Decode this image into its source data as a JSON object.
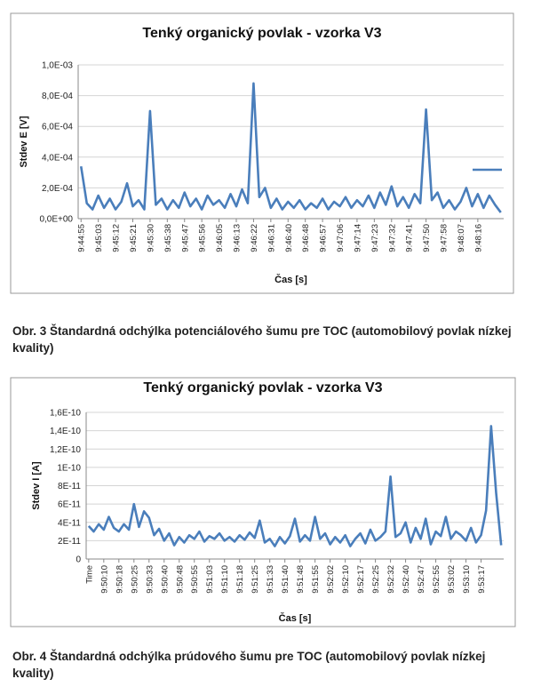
{
  "chart_data": [
    {
      "type": "line",
      "title": "Tenký organický povlak - vzorka V3",
      "x_label": "Čas [s]",
      "y_label": "Stdev E [V]",
      "categories": [
        "9:44:55",
        null,
        null,
        "9:45:03",
        null,
        null,
        "9:45:12",
        null,
        null,
        "9:45:21",
        null,
        null,
        "9:45:30",
        null,
        null,
        "9:45:38",
        null,
        null,
        "9:45:47",
        null,
        null,
        "9:45:56",
        null,
        null,
        "9:46:05",
        null,
        null,
        "9:46:13",
        null,
        null,
        "9:46:22",
        null,
        null,
        "9:46:31",
        null,
        null,
        "9:46:40",
        null,
        null,
        "9:46:48",
        null,
        null,
        "9:46:57",
        null,
        null,
        "9:47:06",
        null,
        null,
        "9:47:14",
        null,
        null,
        "9:47:23",
        null,
        null,
        "9:47:32",
        null,
        null,
        "9:47:41",
        null,
        null,
        "9:47:50",
        null,
        null,
        "9:47:58",
        null,
        null,
        "9:48:07",
        null,
        null,
        "9:48:16",
        null,
        null,
        null,
        null
      ],
      "series": [
        {
          "color": "#4a7ebb",
          "values": [
            0.00034,
            0.0001,
            6e-05,
            0.00015,
            7e-05,
            0.00013,
            6e-05,
            0.00011,
            0.00023,
            8e-05,
            0.00012,
            6e-05,
            0.0007,
            9e-05,
            0.00013,
            6e-05,
            0.00012,
            7e-05,
            0.00017,
            8e-05,
            0.00013,
            6e-05,
            0.00015,
            9e-05,
            0.00012,
            7e-05,
            0.00016,
            8e-05,
            0.00019,
            0.0001,
            0.00088,
            0.00014,
            0.0002,
            7e-05,
            0.00013,
            6e-05,
            0.00011,
            7e-05,
            0.00012,
            6e-05,
            0.0001,
            7e-05,
            0.00013,
            6e-05,
            0.00011,
            8e-05,
            0.00014,
            7e-05,
            0.00012,
            8e-05,
            0.00015,
            7e-05,
            0.00017,
            9e-05,
            0.00021,
            8e-05,
            0.00014,
            7e-05,
            0.00016,
            0.0001,
            0.00071,
            0.00012,
            0.00017,
            7e-05,
            0.00012,
            6e-05,
            0.00011,
            0.0002,
            8e-05,
            0.00016,
            7e-05,
            0.00015,
            9e-05,
            4e-05
          ]
        }
      ],
      "ylim": [
        0,
        0.001
      ],
      "yticks": [
        {
          "value": 0,
          "label": "0,0E+00"
        },
        {
          "value": 0.0002,
          "label": "2,0E-04"
        },
        {
          "value": 0.0004,
          "label": "4,0E-04"
        },
        {
          "value": 0.0006,
          "label": "6,0E-04"
        },
        {
          "value": 0.0008,
          "label": "8,0E-04"
        },
        {
          "value": 0.001,
          "label": "1,0E-03"
        }
      ],
      "grid": true,
      "legend": "right"
    },
    {
      "type": "line",
      "title": "Tenký organický povlak - vzorka V3",
      "x_label": "Čas [s]",
      "y_label": "Stdev I [A]",
      "categories": [
        "Time",
        null,
        null,
        "9:50:10",
        null,
        null,
        "9:50:18",
        null,
        null,
        "9:50:25",
        null,
        null,
        "9:50:33",
        null,
        null,
        "9:50:40",
        null,
        null,
        "9:50:48",
        null,
        null,
        "9:50:55",
        null,
        null,
        "9:51:03",
        null,
        null,
        "9:51:10",
        null,
        null,
        "9:51:18",
        null,
        null,
        "9:51:25",
        null,
        null,
        "9:51:33",
        null,
        null,
        "9:51:40",
        null,
        null,
        "9:51:48",
        null,
        null,
        "9:51:55",
        null,
        null,
        "9:52:02",
        null,
        null,
        "9:52:10",
        null,
        null,
        "9:52:17",
        null,
        null,
        "9:52:25",
        null,
        null,
        "9:52:32",
        null,
        null,
        "9:52:40",
        null,
        null,
        "9:52:47",
        null,
        null,
        "9:52:55",
        null,
        null,
        "9:53:02",
        null,
        null,
        "9:53:10",
        null,
        null,
        "9:53:17",
        null,
        null,
        null,
        null
      ],
      "series": [
        {
          "color": "#4a7ebb",
          "values": [
            3.6e-11,
            3e-11,
            3.8e-11,
            3.2e-11,
            4.6e-11,
            3.4e-11,
            3e-11,
            3.8e-11,
            3.2e-11,
            6e-11,
            3.5e-11,
            5.2e-11,
            4.5e-11,
            2.6e-11,
            3.3e-11,
            2e-11,
            2.8e-11,
            1.5e-11,
            2.4e-11,
            1.8e-11,
            2.6e-11,
            2.2e-11,
            3e-11,
            1.9e-11,
            2.5e-11,
            2.2e-11,
            2.8e-11,
            2e-11,
            2.4e-11,
            1.9e-11,
            2.6e-11,
            2.1e-11,
            2.9e-11,
            2.3e-11,
            4.2e-11,
            1.8e-11,
            2.2e-11,
            1.4e-11,
            2.4e-11,
            1.7e-11,
            2.5e-11,
            4.4e-11,
            1.9e-11,
            2.6e-11,
            2e-11,
            4.6e-11,
            2.2e-11,
            2.8e-11,
            1.6e-11,
            2.4e-11,
            1.8e-11,
            2.6e-11,
            1.4e-11,
            2.2e-11,
            2.8e-11,
            1.7e-11,
            3.2e-11,
            2e-11,
            2.4e-11,
            3e-11,
            9e-11,
            2.4e-11,
            2.8e-11,
            4e-11,
            1.8e-11,
            3.4e-11,
            2.2e-11,
            4.4e-11,
            1.6e-11,
            3e-11,
            2.5e-11,
            4.6e-11,
            2.2e-11,
            3e-11,
            2.6e-11,
            2e-11,
            3.4e-11,
            1.8e-11,
            2.6e-11,
            5.3e-11,
            1.45e-10,
            7.2e-11,
            1.5e-11
          ]
        }
      ],
      "ylim": [
        0,
        1.6e-10
      ],
      "yticks": [
        0,
        {
          "value": 2e-11,
          "label": "2E-11"
        },
        {
          "value": 4e-11,
          "label": "4E-11"
        },
        {
          "value": 6e-11,
          "label": "6E-11"
        },
        {
          "value": 8e-11,
          "label": "8E-11"
        },
        {
          "value": 1e-10,
          "label": "1E-10"
        },
        {
          "value": 1.2e-10,
          "label": "1,2E-10"
        },
        {
          "value": 1.4e-10,
          "label": "1,4E-10"
        },
        {
          "value": 1.6e-10,
          "label": "1,6E-10"
        }
      ],
      "grid": true
    }
  ],
  "captions": [
    "Obr. 3 Štandardná odchýlka potenciálového šumu pre TOC (automobilový povlak nízkej kvality)",
    "Obr. 4 Štandardná odchýlka prúdového šumu pre TOC (automobilový povlak nízkej kvality)"
  ]
}
